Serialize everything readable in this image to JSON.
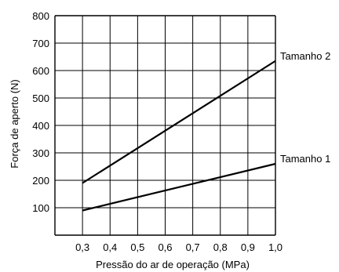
{
  "chart_data": {
    "type": "line",
    "xlabel": "Pressão do ar de operação (MPa)",
    "ylabel": "Força de aperto (N)",
    "xlim": [
      0.2,
      1.0
    ],
    "ylim": [
      0,
      800
    ],
    "grid": true,
    "x_ticks": [
      "0,3",
      "0,4",
      "0,5",
      "0,6",
      "0,7",
      "0,8",
      "0,9",
      "1,0"
    ],
    "y_ticks": [
      "100",
      "200",
      "300",
      "400",
      "500",
      "600",
      "700",
      "800"
    ],
    "series": [
      {
        "name": "Tamanho 2",
        "x": [
          0.3,
          1.0
        ],
        "y": [
          190,
          635
        ]
      },
      {
        "name": "Tamanho 1",
        "x": [
          0.3,
          1.0
        ],
        "y": [
          90,
          260
        ]
      }
    ],
    "line_color": "#000000",
    "grid_color": "#000000"
  }
}
